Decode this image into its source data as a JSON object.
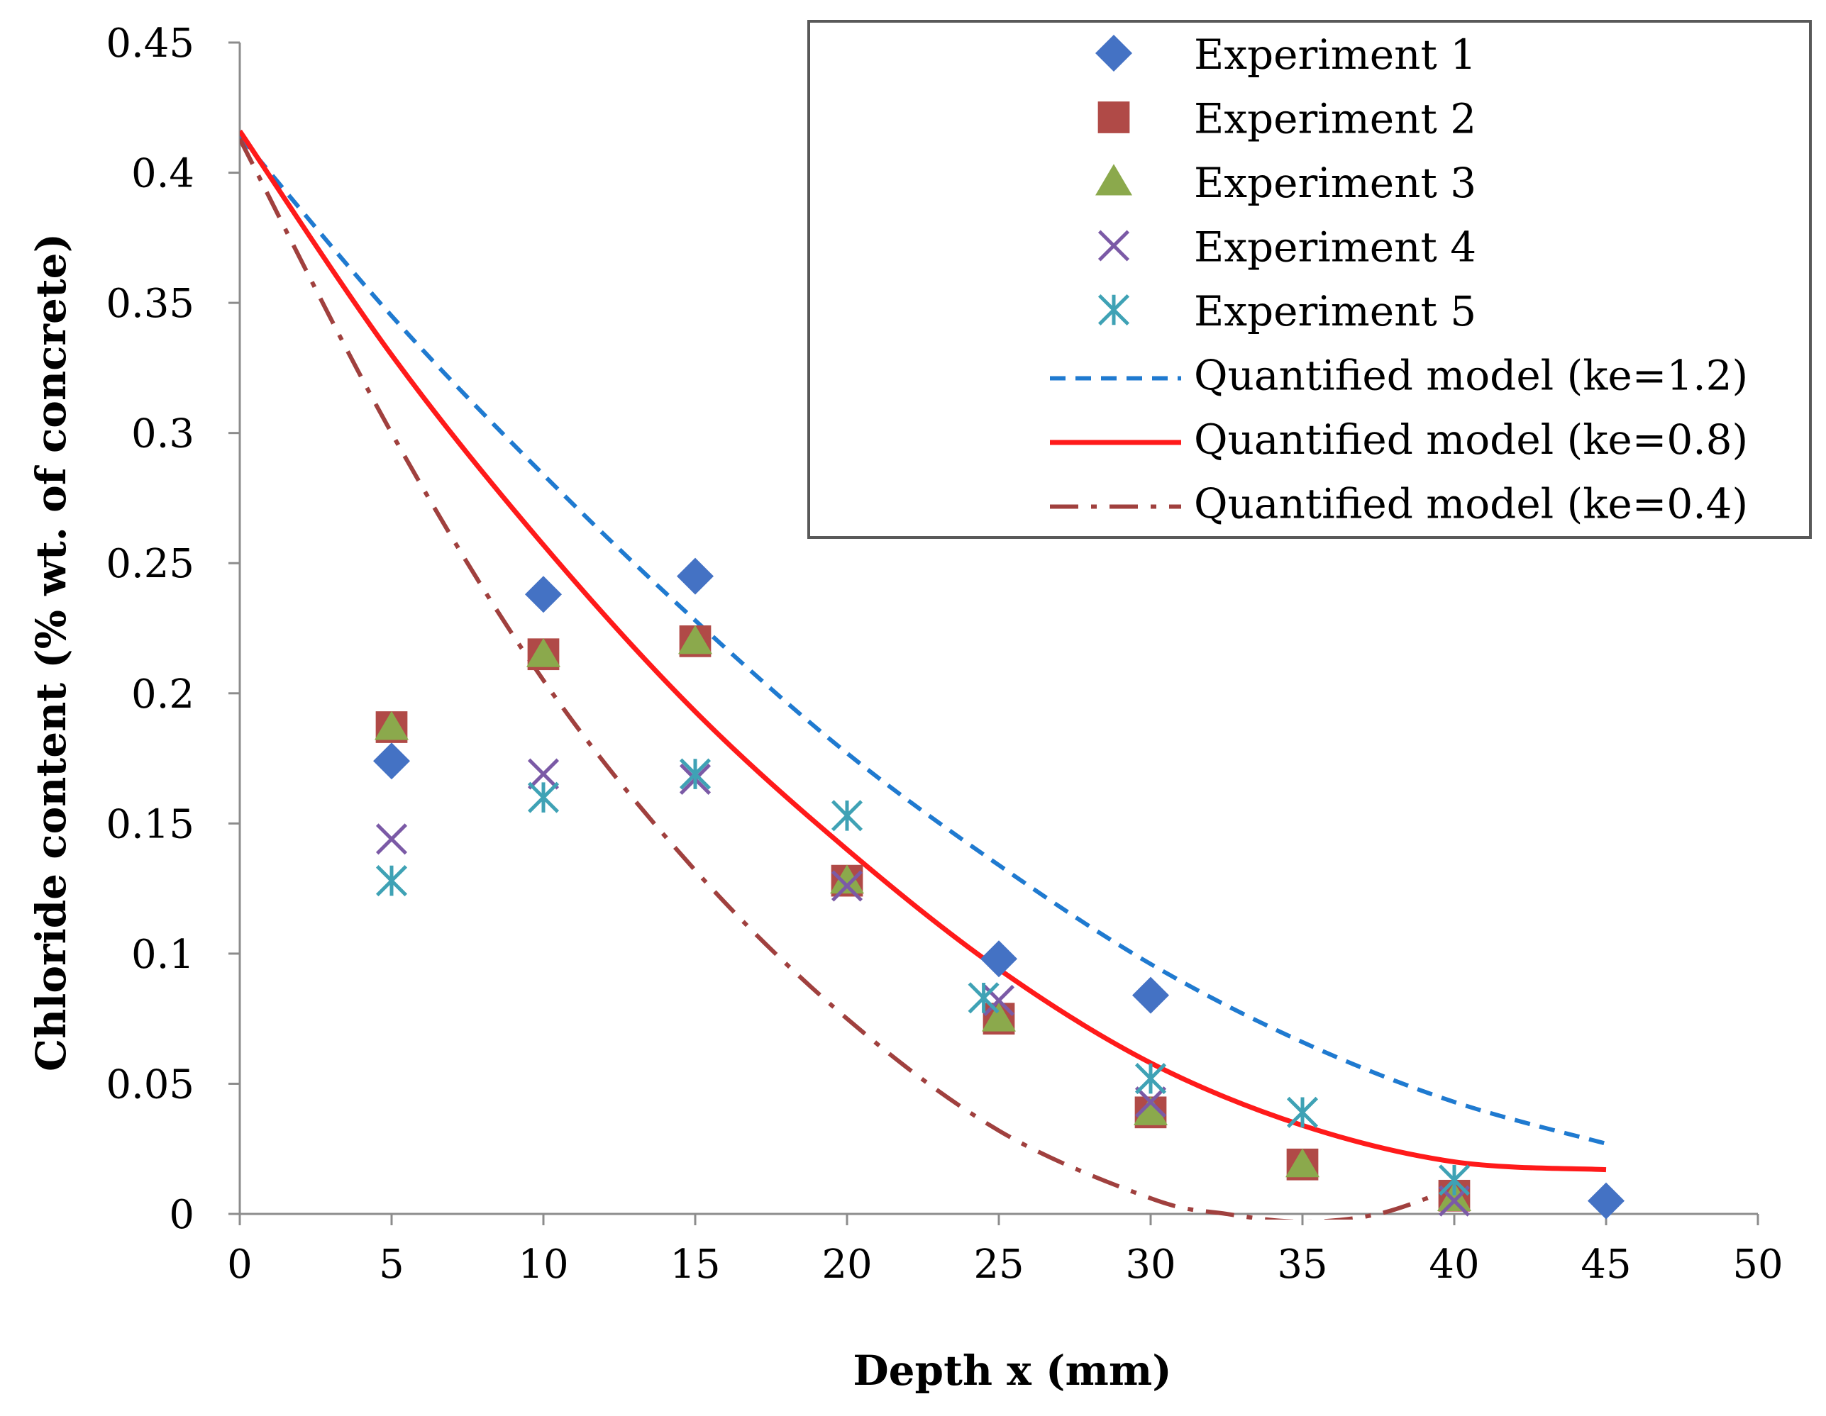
{
  "chart_data": {
    "type": "scatter",
    "xlabel": "Depth x (mm)",
    "ylabel": "Chloride content (% wt. of concrete)",
    "xlim": [
      0,
      50
    ],
    "ylim": [
      0,
      0.45
    ],
    "x_ticks": [
      "0",
      "5",
      "10",
      "15",
      "20",
      "25",
      "30",
      "35",
      "40",
      "45",
      "50"
    ],
    "y_ticks": [
      "0",
      "0.05",
      "0.1",
      "0.15",
      "0.2",
      "0.25",
      "0.3",
      "0.35",
      "0.4",
      "0.45"
    ],
    "x_tick_values": [
      0,
      5,
      10,
      15,
      20,
      25,
      30,
      35,
      40,
      45,
      50
    ],
    "y_tick_values": [
      0,
      0.05,
      0.1,
      0.15,
      0.2,
      0.25,
      0.3,
      0.35,
      0.4,
      0.45
    ],
    "grid": false,
    "legend_position": "top-right",
    "series": [
      {
        "name": "Experiment 1",
        "marker": "diamond",
        "color": "#4472C4",
        "points": [
          [
            5,
            0.174
          ],
          [
            10,
            0.238
          ],
          [
            15,
            0.245
          ],
          [
            25,
            0.098
          ],
          [
            30,
            0.084
          ],
          [
            45,
            0.005
          ]
        ]
      },
      {
        "name": "Experiment 2",
        "marker": "square",
        "color": "#B04A47",
        "points": [
          [
            5,
            0.187
          ],
          [
            10,
            0.215
          ],
          [
            15,
            0.22
          ],
          [
            20,
            0.128
          ],
          [
            25,
            0.075
          ],
          [
            30,
            0.039
          ],
          [
            35,
            0.019
          ],
          [
            40,
            0.007
          ]
        ]
      },
      {
        "name": "Experiment 3",
        "marker": "triangle",
        "color": "#8BA94C",
        "points": [
          [
            5,
            0.187
          ],
          [
            10,
            0.215
          ],
          [
            15,
            0.22
          ],
          [
            20,
            0.128
          ],
          [
            25,
            0.075
          ],
          [
            30,
            0.039
          ],
          [
            35,
            0.019
          ],
          [
            40,
            0.006
          ]
        ]
      },
      {
        "name": "Experiment 4",
        "marker": "x",
        "color": "#7B5AA6",
        "points": [
          [
            5,
            0.144
          ],
          [
            10,
            0.169
          ],
          [
            15,
            0.167
          ],
          [
            20,
            0.126
          ],
          [
            25,
            0.082
          ],
          [
            30,
            0.043
          ],
          [
            40,
            0.005
          ]
        ]
      },
      {
        "name": "Experiment 5",
        "marker": "asterisk",
        "color": "#3FA2B5",
        "points": [
          [
            5,
            0.128
          ],
          [
            10,
            0.16
          ],
          [
            15,
            0.169
          ],
          [
            20,
            0.153
          ],
          [
            24.5,
            0.083
          ],
          [
            30,
            0.052
          ],
          [
            35,
            0.039
          ],
          [
            40,
            0.013
          ]
        ]
      },
      {
        "name": "Quantified model (ke=1.2)",
        "line": "dashed",
        "color": "#1F7AD0",
        "points": [
          [
            0,
            0.414
          ],
          [
            5,
            0.345
          ],
          [
            10,
            0.284
          ],
          [
            15,
            0.228
          ],
          [
            20,
            0.177
          ],
          [
            25,
            0.134
          ],
          [
            30,
            0.096
          ],
          [
            35,
            0.066
          ],
          [
            40,
            0.043
          ],
          [
            45,
            0.027
          ]
        ]
      },
      {
        "name": "Quantified model (ke=0.8)",
        "line": "solid",
        "color": "#FF1A1A",
        "points": [
          [
            0,
            0.416
          ],
          [
            5,
            0.33
          ],
          [
            10,
            0.257
          ],
          [
            15,
            0.193
          ],
          [
            20,
            0.14
          ],
          [
            25,
            0.094
          ],
          [
            30,
            0.058
          ],
          [
            35,
            0.034
          ],
          [
            40,
            0.02
          ],
          [
            45,
            0.017
          ]
        ]
      },
      {
        "name": "Quantified model (ke=0.4)",
        "line": "dashdot",
        "color": "#A0403E",
        "points": [
          [
            0,
            0.413
          ],
          [
            5,
            0.3
          ],
          [
            10,
            0.205
          ],
          [
            15,
            0.132
          ],
          [
            20,
            0.075
          ],
          [
            25,
            0.032
          ],
          [
            30,
            0.006
          ],
          [
            32.5,
            0.0
          ],
          [
            35,
            -0.003
          ],
          [
            37.5,
            0.0
          ],
          [
            40,
            0.01
          ]
        ]
      }
    ]
  }
}
